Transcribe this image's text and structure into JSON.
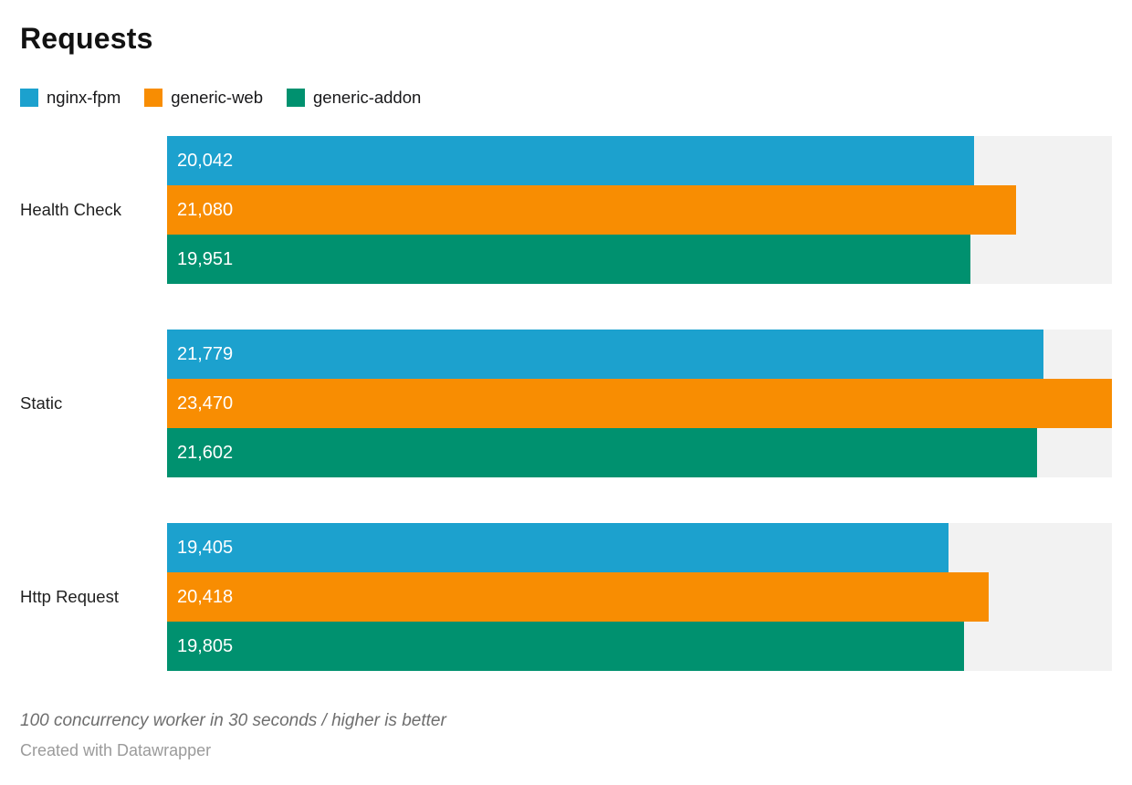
{
  "header": {
    "title": "Requests"
  },
  "footer": {
    "note": "100 concurrency worker in 30 seconds / higher is better",
    "credit": "Created with Datawrapper"
  },
  "colors": {
    "track": "#f2f2f2",
    "bar_label": "#ffffff",
    "title_text": "#121212",
    "note_text": "#6e6e6e",
    "credit_text": "#9b9b9b"
  },
  "chart_data": {
    "type": "bar",
    "orientation": "horizontal",
    "title": "Requests",
    "categories": [
      "Health Check",
      "Static",
      "Http Request"
    ],
    "series": [
      {
        "name": "nginx-fpm",
        "color": "#1ca1ce",
        "values": [
          20042,
          21779,
          19405
        ],
        "labels": [
          "20,042",
          "21,779",
          "19,405"
        ]
      },
      {
        "name": "generic-web",
        "color": "#f88d02",
        "values": [
          21080,
          23470,
          20418
        ],
        "labels": [
          "21,080",
          "23,470",
          "20,418"
        ]
      },
      {
        "name": "generic-addon",
        "color": "#00916f",
        "values": [
          19951,
          21602,
          19805
        ],
        "labels": [
          "19,951",
          "21,602",
          "19,805"
        ]
      }
    ],
    "axis_max": 23470,
    "value_format": "thousands-comma",
    "value_labels_inside_bars": true,
    "legend_position": "top",
    "grid": false,
    "xlabel": "",
    "ylabel": "",
    "note": "100 concurrency worker in 30 seconds / higher is better",
    "credit": "Created with Datawrapper"
  }
}
